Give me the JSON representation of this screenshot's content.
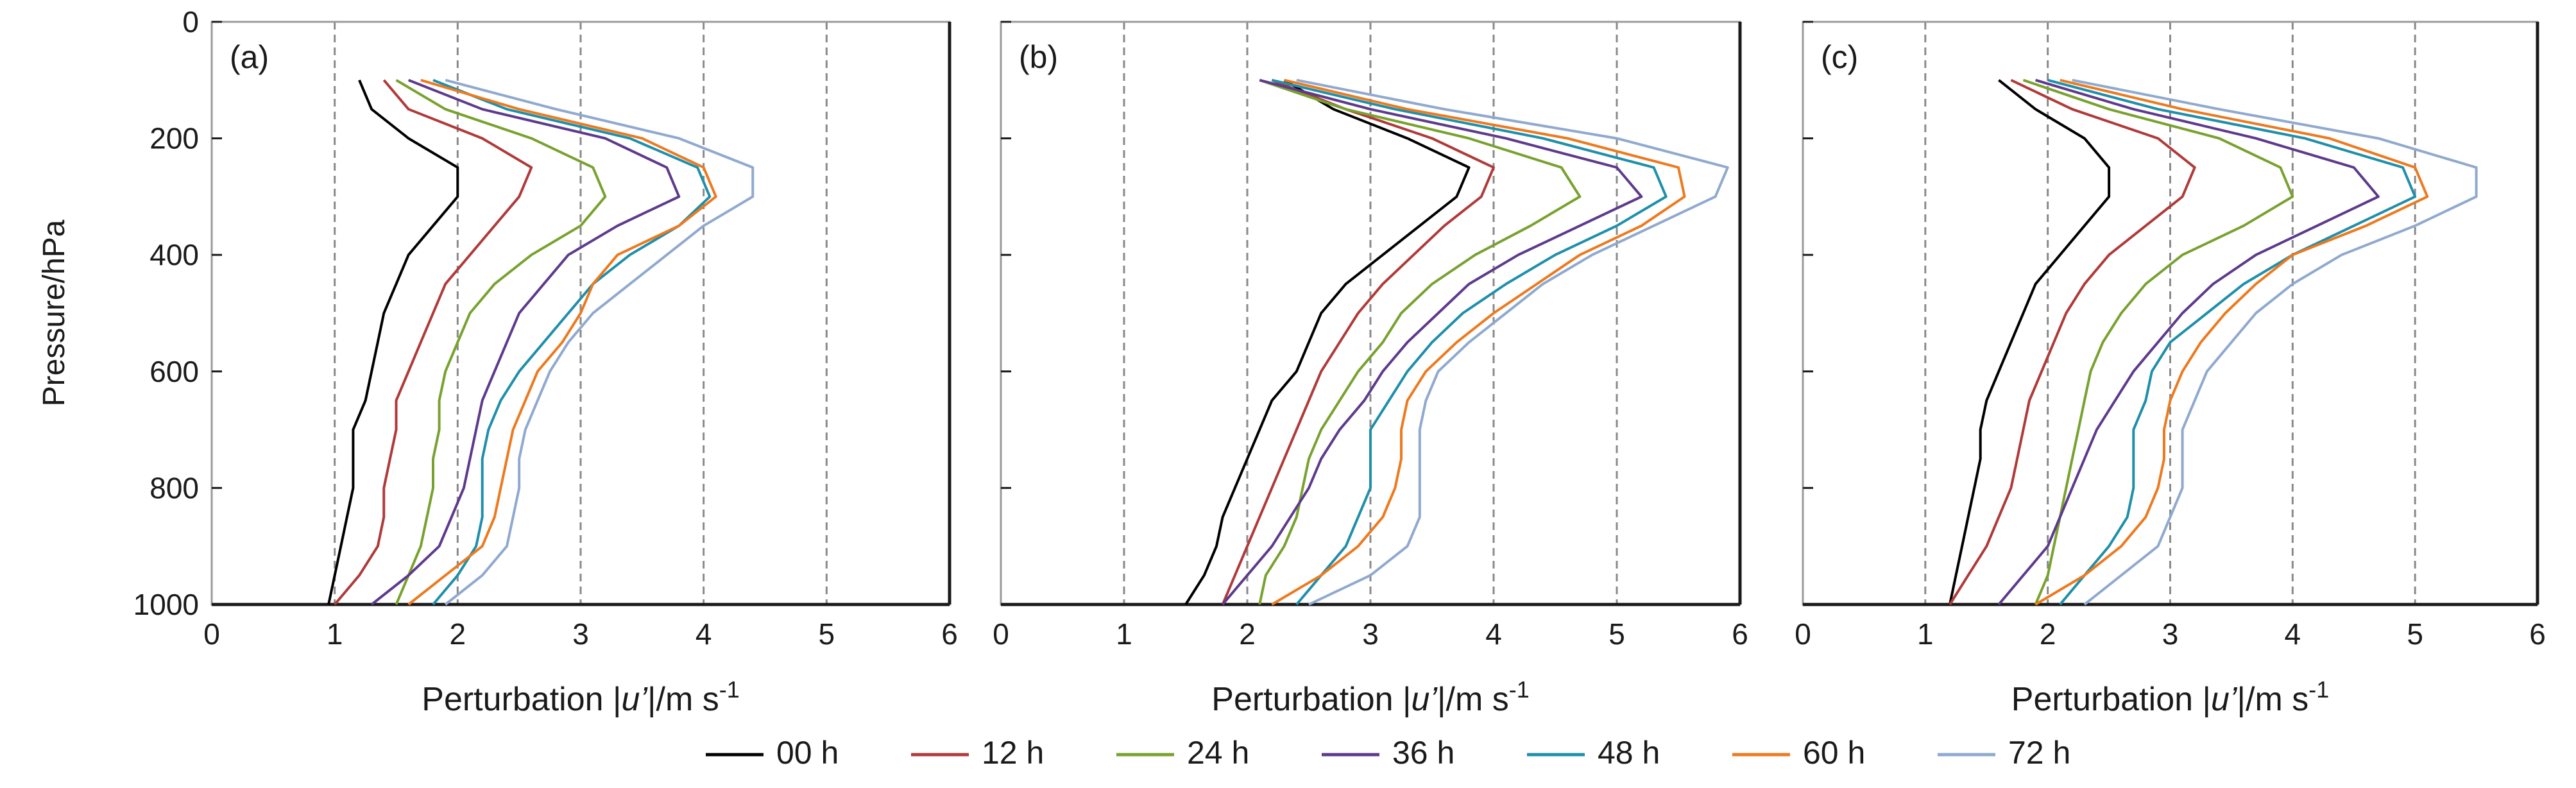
{
  "chart_data": [
    {
      "type": "line",
      "panel_label": "(a)",
      "ylabel": "Pressure/hPa",
      "xlabel_prefix": "Perturbation |",
      "xlabel_var": "u’",
      "xlabel_suffix": "|/m s",
      "xlabel_exp": "-1",
      "xlim": [
        0,
        6
      ],
      "ylim": [
        0,
        1000
      ],
      "y_inverted": true,
      "xticks": [
        "0",
        "1",
        "2",
        "3",
        "4",
        "5",
        "6"
      ],
      "yticks": [
        "0",
        "200",
        "400",
        "600",
        "800",
        "1000"
      ],
      "grid": "vertical-dashed",
      "pressure": [
        100,
        150,
        200,
        250,
        300,
        350,
        400,
        450,
        500,
        550,
        600,
        650,
        700,
        750,
        800,
        850,
        900,
        950,
        1000
      ],
      "series": [
        {
          "name": "00 h",
          "color": "#000000",
          "values": [
            1.2,
            1.3,
            1.6,
            2.0,
            2.0,
            1.8,
            1.6,
            1.5,
            1.4,
            1.35,
            1.3,
            1.25,
            1.15,
            1.15,
            1.15,
            1.1,
            1.05,
            1.0,
            0.95
          ]
        },
        {
          "name": "12 h",
          "color": "#b03a3a",
          "values": [
            1.4,
            1.6,
            2.2,
            2.6,
            2.5,
            2.3,
            2.1,
            1.9,
            1.8,
            1.7,
            1.6,
            1.5,
            1.5,
            1.45,
            1.4,
            1.4,
            1.35,
            1.2,
            1.0
          ]
        },
        {
          "name": "24 h",
          "color": "#78a22f",
          "values": [
            1.5,
            1.9,
            2.6,
            3.1,
            3.2,
            3.0,
            2.6,
            2.3,
            2.1,
            2.0,
            1.9,
            1.85,
            1.85,
            1.8,
            1.8,
            1.75,
            1.7,
            1.6,
            1.5
          ]
        },
        {
          "name": "36 h",
          "color": "#5e3a8c",
          "values": [
            1.6,
            2.2,
            3.2,
            3.7,
            3.8,
            3.3,
            2.9,
            2.7,
            2.5,
            2.4,
            2.3,
            2.2,
            2.15,
            2.1,
            2.05,
            1.95,
            1.85,
            1.6,
            1.3
          ]
        },
        {
          "name": "48 h",
          "color": "#1f8faa",
          "values": [
            1.8,
            2.4,
            3.4,
            3.95,
            4.05,
            3.8,
            3.4,
            3.1,
            2.9,
            2.7,
            2.5,
            2.35,
            2.25,
            2.2,
            2.2,
            2.2,
            2.15,
            2.0,
            1.8
          ]
        },
        {
          "name": "60 h",
          "color": "#ec7a1f",
          "values": [
            1.7,
            2.5,
            3.5,
            4.0,
            4.1,
            3.8,
            3.3,
            3.1,
            3.0,
            2.85,
            2.65,
            2.55,
            2.45,
            2.4,
            2.35,
            2.3,
            2.2,
            1.9,
            1.6
          ]
        },
        {
          "name": "72 h",
          "color": "#8fa9cf",
          "values": [
            1.9,
            2.8,
            3.8,
            4.4,
            4.4,
            4.0,
            3.7,
            3.4,
            3.1,
            2.9,
            2.75,
            2.65,
            2.55,
            2.5,
            2.5,
            2.45,
            2.4,
            2.2,
            1.9
          ]
        }
      ]
    },
    {
      "type": "line",
      "panel_label": "(b)",
      "ylabel": "",
      "xlabel_prefix": "Perturbation |",
      "xlabel_var": "u’",
      "xlabel_suffix": "|/m s",
      "xlabel_exp": "-1",
      "xlim": [
        0,
        6
      ],
      "ylim": [
        0,
        1000
      ],
      "y_inverted": true,
      "xticks": [
        "0",
        "1",
        "2",
        "3",
        "4",
        "5",
        "6"
      ],
      "yticks": [],
      "grid": "vertical-dashed",
      "pressure": [
        100,
        150,
        200,
        250,
        300,
        350,
        400,
        450,
        500,
        550,
        600,
        650,
        700,
        750,
        800,
        850,
        900,
        950,
        1000
      ],
      "series": [
        {
          "name": "00 h",
          "color": "#000000",
          "values": [
            2.3,
            2.7,
            3.3,
            3.8,
            3.7,
            3.4,
            3.1,
            2.8,
            2.6,
            2.5,
            2.4,
            2.2,
            2.1,
            2.0,
            1.9,
            1.8,
            1.75,
            1.65,
            1.5
          ]
        },
        {
          "name": "12 h",
          "color": "#b03a3a",
          "values": [
            2.2,
            2.8,
            3.5,
            4.0,
            3.9,
            3.6,
            3.35,
            3.1,
            2.9,
            2.75,
            2.6,
            2.5,
            2.4,
            2.3,
            2.2,
            2.1,
            2.0,
            1.9,
            1.8
          ]
        },
        {
          "name": "24 h",
          "color": "#78a22f",
          "values": [
            2.1,
            2.8,
            3.8,
            4.55,
            4.7,
            4.3,
            3.85,
            3.5,
            3.25,
            3.1,
            2.9,
            2.75,
            2.6,
            2.5,
            2.45,
            2.4,
            2.3,
            2.15,
            2.1
          ]
        },
        {
          "name": "36 h",
          "color": "#5e3a8c",
          "values": [
            2.1,
            3.0,
            4.1,
            5.0,
            5.2,
            4.7,
            4.2,
            3.8,
            3.55,
            3.3,
            3.1,
            2.95,
            2.75,
            2.6,
            2.5,
            2.35,
            2.2,
            2.0,
            1.8
          ]
        },
        {
          "name": "48 h",
          "color": "#1f8faa",
          "values": [
            2.2,
            3.2,
            4.4,
            5.3,
            5.4,
            5.0,
            4.5,
            4.1,
            3.75,
            3.5,
            3.3,
            3.15,
            3.0,
            3.0,
            3.0,
            2.9,
            2.8,
            2.6,
            2.4
          ]
        },
        {
          "name": "60 h",
          "color": "#ec7a1f",
          "values": [
            2.3,
            3.3,
            4.6,
            5.5,
            5.55,
            5.2,
            4.7,
            4.35,
            4.0,
            3.7,
            3.45,
            3.3,
            3.25,
            3.25,
            3.2,
            3.1,
            2.9,
            2.6,
            2.2
          ]
        },
        {
          "name": "72 h",
          "color": "#8fa9cf",
          "values": [
            2.4,
            3.6,
            5.0,
            5.9,
            5.8,
            5.3,
            4.8,
            4.4,
            4.1,
            3.8,
            3.55,
            3.45,
            3.4,
            3.4,
            3.4,
            3.4,
            3.3,
            3.0,
            2.5
          ]
        }
      ]
    },
    {
      "type": "line",
      "panel_label": "(c)",
      "ylabel": "",
      "xlabel_prefix": "Perturbation |",
      "xlabel_var": "u’",
      "xlabel_suffix": "|/m s",
      "xlabel_exp": "-1",
      "xlim": [
        0,
        6
      ],
      "ylim": [
        0,
        1000
      ],
      "y_inverted": true,
      "xticks": [
        "0",
        "1",
        "2",
        "3",
        "4",
        "5",
        "6"
      ],
      "yticks": [],
      "grid": "vertical-dashed",
      "pressure": [
        100,
        150,
        200,
        250,
        300,
        350,
        400,
        450,
        500,
        550,
        600,
        650,
        700,
        750,
        800,
        850,
        900,
        950,
        1000
      ],
      "series": [
        {
          "name": "00 h",
          "color": "#000000",
          "values": [
            1.6,
            1.9,
            2.3,
            2.5,
            2.5,
            2.3,
            2.1,
            1.9,
            1.8,
            1.7,
            1.6,
            1.5,
            1.45,
            1.45,
            1.4,
            1.35,
            1.3,
            1.25,
            1.2
          ]
        },
        {
          "name": "12 h",
          "color": "#b03a3a",
          "values": [
            1.7,
            2.2,
            2.9,
            3.2,
            3.1,
            2.8,
            2.5,
            2.3,
            2.15,
            2.05,
            1.95,
            1.85,
            1.8,
            1.75,
            1.7,
            1.6,
            1.5,
            1.35,
            1.2
          ]
        },
        {
          "name": "24 h",
          "color": "#78a22f",
          "values": [
            1.8,
            2.5,
            3.4,
            3.9,
            4.0,
            3.6,
            3.1,
            2.8,
            2.6,
            2.45,
            2.35,
            2.3,
            2.25,
            2.2,
            2.15,
            2.1,
            2.05,
            2.0,
            1.9
          ]
        },
        {
          "name": "36 h",
          "color": "#5e3a8c",
          "values": [
            1.9,
            2.7,
            3.7,
            4.5,
            4.7,
            4.2,
            3.7,
            3.35,
            3.1,
            2.9,
            2.7,
            2.55,
            2.4,
            2.3,
            2.2,
            2.1,
            2.0,
            1.8,
            1.6
          ]
        },
        {
          "name": "48 h",
          "color": "#1f8faa",
          "values": [
            2.0,
            2.9,
            4.1,
            4.9,
            5.0,
            4.5,
            4.0,
            3.6,
            3.3,
            3.0,
            2.85,
            2.8,
            2.7,
            2.7,
            2.7,
            2.65,
            2.5,
            2.3,
            2.1
          ]
        },
        {
          "name": "60 h",
          "color": "#ec7a1f",
          "values": [
            2.1,
            3.1,
            4.3,
            5.0,
            5.1,
            4.6,
            4.0,
            3.7,
            3.45,
            3.25,
            3.1,
            3.0,
            2.95,
            2.95,
            2.9,
            2.8,
            2.6,
            2.3,
            1.9
          ]
        },
        {
          "name": "72 h",
          "color": "#8fa9cf",
          "values": [
            2.2,
            3.4,
            4.7,
            5.5,
            5.5,
            5.0,
            4.4,
            4.0,
            3.7,
            3.5,
            3.3,
            3.2,
            3.1,
            3.1,
            3.1,
            3.0,
            2.9,
            2.6,
            2.3
          ]
        }
      ]
    }
  ],
  "legend": {
    "placement": "bottom-center",
    "entries": [
      {
        "label": "00 h",
        "color": "#000000"
      },
      {
        "label": "12 h",
        "color": "#b03a3a"
      },
      {
        "label": "24 h",
        "color": "#78a22f"
      },
      {
        "label": "36 h",
        "color": "#5e3a8c"
      },
      {
        "label": "48 h",
        "color": "#1f8faa"
      },
      {
        "label": "60 h",
        "color": "#ec7a1f"
      },
      {
        "label": "72 h",
        "color": "#8fa9cf"
      }
    ]
  }
}
